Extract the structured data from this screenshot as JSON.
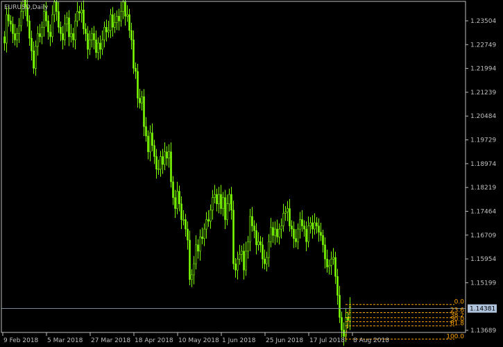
{
  "window": {
    "title": "EURUSD,Daily"
  },
  "colors": {
    "background": "#000000",
    "frame": "#c0c0c0",
    "candle": "#7cfc00",
    "fib": "#ffa500",
    "price_line": "#778899",
    "price_tag_bg": "#b0c4de",
    "price_tag_text": "#000000",
    "text": "#c0c0c0"
  },
  "price_axis": {
    "ticks": [
      "1.23504",
      "1.22749",
      "1.21994",
      "1.21239",
      "1.20484",
      "1.19729",
      "1.18974",
      "1.18219",
      "1.17464",
      "1.16709",
      "1.15954",
      "1.15199",
      "1.13689"
    ],
    "current_price": "1.14381"
  },
  "time_axis": {
    "labels": [
      "9 Feb 2018",
      "5 Mar 2018",
      "27 Mar 2018",
      "18 Apr 2018",
      "10 May 2018",
      "1 Jun 2018",
      "25 Jun 2018",
      "17 Jul 2018",
      "8 Aug 2018"
    ]
  },
  "fibonacci": {
    "levels": [
      "0.0",
      "23.6",
      "38.2",
      "50.0",
      "61.8",
      "100.0"
    ],
    "values": [
      1.1451,
      1.1425,
      1.1409,
      1.1396,
      1.1383,
      1.1341
    ]
  },
  "chart_data": {
    "type": "candlestick",
    "symbol": "EURUSD",
    "timeframe": "Daily",
    "ylim": [
      1.133,
      1.2405
    ],
    "closes": [
      1.228,
      1.237,
      1.235,
      1.234,
      1.231,
      1.229,
      1.231,
      1.2335,
      1.238,
      1.2425,
      1.2395,
      1.235,
      1.2295,
      1.2255,
      1.22,
      1.227,
      1.231,
      1.23,
      1.233,
      1.238,
      1.235,
      1.2315,
      1.23,
      1.237,
      1.241,
      1.238,
      1.233,
      1.231,
      1.229,
      1.234,
      1.236,
      1.23,
      1.231,
      1.229,
      1.235,
      1.238,
      1.2375,
      1.2385,
      1.2325,
      1.231,
      1.226,
      1.229,
      1.231,
      1.229,
      1.225,
      1.228,
      1.226,
      1.229,
      1.233,
      1.2315,
      1.232,
      1.237,
      1.233,
      1.2345,
      1.2365,
      1.235,
      1.238,
      1.241,
      1.2365,
      1.237,
      1.232,
      1.229,
      1.22,
      1.219,
      1.2105,
      1.209,
      1.211,
      1.2015,
      1.1985,
      1.1935,
      1.1995,
      1.1955,
      1.192,
      1.188,
      1.188,
      1.192,
      1.1895,
      1.1935,
      1.1915,
      1.1935,
      1.184,
      1.179,
      1.1755,
      1.181,
      1.177,
      1.172,
      1.172,
      1.169,
      1.1655,
      1.153,
      1.1545,
      1.158,
      1.164,
      1.162,
      1.1665,
      1.166,
      1.169,
      1.172,
      1.1715,
      1.175,
      1.179,
      1.18,
      1.177,
      1.18,
      1.1755,
      1.179,
      1.172,
      1.177,
      1.18,
      1.175,
      1.158,
      1.156,
      1.1595,
      1.161,
      1.162,
      1.156,
      1.162,
      1.165,
      1.173,
      1.17,
      1.1685,
      1.164,
      1.165,
      1.164,
      1.1595,
      1.158,
      1.16,
      1.165,
      1.1695,
      1.167,
      1.169,
      1.1665,
      1.169,
      1.17,
      1.174,
      1.1745,
      1.1755,
      1.17,
      1.169,
      1.166,
      1.165,
      1.169,
      1.172,
      1.17,
      1.169,
      1.165,
      1.17,
      1.171,
      1.169,
      1.171,
      1.17,
      1.168,
      1.167,
      1.164,
      1.1595,
      1.157,
      1.1575,
      1.1595,
      1.16,
      1.154,
      1.148,
      1.141,
      1.137,
      1.135,
      1.141,
      1.14,
      1.145
    ]
  }
}
